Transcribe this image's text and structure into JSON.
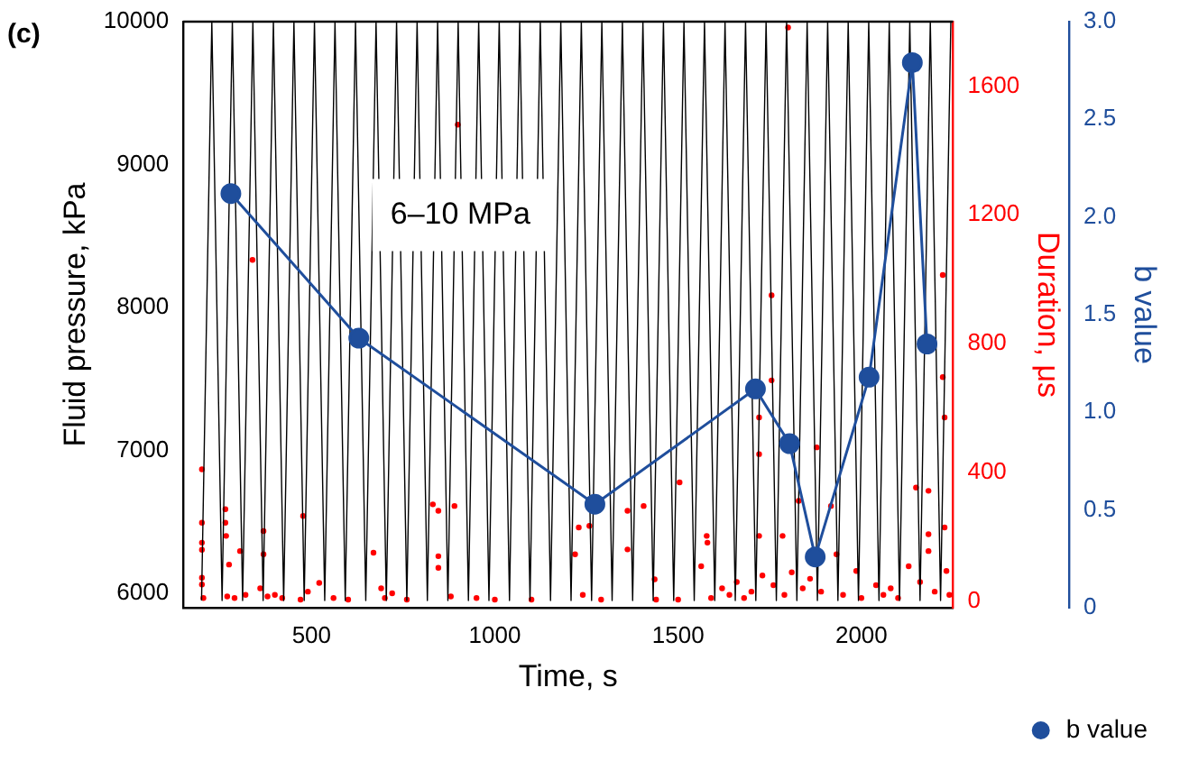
{
  "chart_data": {
    "type": "line",
    "xlabel": "Time, s",
    "ylabel": "Fluid pressure, kPa",
    "y2label": "Duration, μs",
    "y3label": "b value",
    "annotations": [
      "(c)",
      "6–10 MPa"
    ],
    "xlim": [
      150,
      2250
    ],
    "xticks": [
      500,
      1000,
      1500,
      2000
    ],
    "ylim": [
      5900,
      10000
    ],
    "yticks": [
      6000,
      7000,
      8000,
      9000,
      10000
    ],
    "y2lim": [
      -20,
      1800
    ],
    "y2ticks": [
      0,
      400,
      800,
      1200,
      1600
    ],
    "y3lim": [
      0,
      3
    ],
    "y3ticks": [
      {
        "value": 0,
        "label": "0"
      },
      {
        "value": 0.5,
        "label": "0.5"
      },
      {
        "value": 1,
        "label": "1.0"
      },
      {
        "value": 1.5,
        "label": "1.5"
      },
      {
        "value": 2,
        "label": "2.0"
      },
      {
        "value": 2.5,
        "label": "2.5"
      },
      {
        "value": 3,
        "label": "3.0"
      }
    ],
    "grid": false,
    "legend": "bottom right",
    "series": [
      {
        "type": "line",
        "color": "#000000",
        "marker": "none",
        "x": [
          200,
          228,
          256,
          284,
          312,
          340,
          368,
          396,
          424,
          452,
          480,
          508,
          536,
          564,
          592,
          620,
          648,
          676,
          704,
          732,
          760,
          788,
          816,
          844,
          872,
          900,
          928,
          956,
          984,
          1012,
          1040,
          1068,
          1096,
          1124,
          1152,
          1180,
          1208,
          1236,
          1264,
          1292,
          1320,
          1348,
          1376,
          1404,
          1432,
          1460,
          1488,
          1516,
          1544,
          1572,
          1600,
          1628,
          1656,
          1684,
          1712,
          1740,
          1768,
          1796,
          1824,
          1852,
          1880,
          1908,
          1936,
          1964,
          1992,
          2020,
          2048,
          2076,
          2104,
          2132,
          2160,
          2188,
          2216,
          2244
        ],
        "values": [
          5950,
          10000,
          5950,
          10000,
          5950,
          10000,
          5950,
          10000,
          5950,
          10000,
          5950,
          10000,
          5950,
          10000,
          5950,
          10000,
          5950,
          10000,
          5950,
          10000,
          5950,
          10000,
          5950,
          10000,
          5950,
          10000,
          5950,
          10000,
          5950,
          10000,
          5950,
          10000,
          5950,
          10000,
          5950,
          10000,
          5950,
          10000,
          5950,
          10000,
          5950,
          10000,
          5950,
          10000,
          5950,
          10000,
          5950,
          10000,
          5950,
          10000,
          5950,
          10000,
          5950,
          10000,
          5950,
          10000,
          5950,
          10000,
          5950,
          10000,
          5950,
          10000,
          5950,
          10000,
          5950,
          10000,
          5950,
          10000,
          5950,
          10000,
          5950,
          10000,
          5950,
          10000
        ]
      },
      {
        "type": "scatter",
        "axis": "y2",
        "color": "#ff0000",
        "marker": "circle",
        "x": [
          201,
          201,
          201,
          201,
          201,
          201,
          205,
          265,
          265,
          267,
          275,
          270,
          290,
          305,
          320,
          339,
          369,
          369,
          360,
          380,
          400,
          420,
          477,
          470,
          490,
          521,
          560,
          600,
          669,
          690,
          700,
          720,
          760,
          831,
          846,
          890,
          846,
          846,
          880,
          899,
          950,
          1000,
          1100,
          1229,
          1258,
          1219,
          1240,
          1290,
          1362,
          1362,
          1406,
          1436,
          1440,
          1504,
          1500,
          1563,
          1578,
          1580,
          1590,
          1620,
          1640,
          1660,
          1680,
          1700,
          1721,
          1721,
          1721,
          1730,
          1755,
          1755,
          1760,
          1785,
          1790,
          1800,
          1810,
          1829,
          1840,
          1860,
          1878,
          1890,
          1917,
          1932,
          1950,
          1986,
          2000,
          2040,
          2060,
          2080,
          2100,
          2129,
          2149,
          2160,
          2183,
          2183,
          2183,
          2200,
          2222,
          2222,
          2227,
          2227,
          2232,
          2240
        ],
        "values": [
          410,
          244,
          182,
          160,
          73,
          52,
          10,
          286,
          244,
          203,
          114,
          15,
          10,
          156,
          20,
          1060,
          218,
          146,
          40,
          15,
          20,
          10,
          265,
          5,
          30,
          57,
          10,
          5,
          151,
          40,
          10,
          25,
          5,
          301,
          281,
          296,
          140,
          104,
          15,
          1480,
          10,
          5,
          5,
          229,
          234,
          146,
          20,
          5,
          281,
          161,
          296,
          68,
          5,
          369,
          5,
          109,
          203,
          182,
          10,
          40,
          20,
          60,
          10,
          30,
          571,
          457,
          203,
          80,
          686,
          950,
          50,
          203,
          20,
          1782,
          90,
          312,
          40,
          70,
          478,
          30,
          296,
          146,
          20,
          94,
          10,
          50,
          20,
          40,
          10,
          109,
          353,
          60,
          343,
          208,
          156,
          30,
          696,
          1013,
          571,
          229,
          94,
          20
        ]
      },
      {
        "type": "line",
        "axis": "y3",
        "name": "b value",
        "color": "#1f4e9c",
        "marker": "circle",
        "x": [
          280,
          629,
          1273,
          1711,
          1804,
          1874,
          2021,
          2139,
          2179
        ],
        "values": [
          2.12,
          1.38,
          0.53,
          1.12,
          0.84,
          0.26,
          1.18,
          2.79,
          1.35
        ]
      }
    ]
  }
}
